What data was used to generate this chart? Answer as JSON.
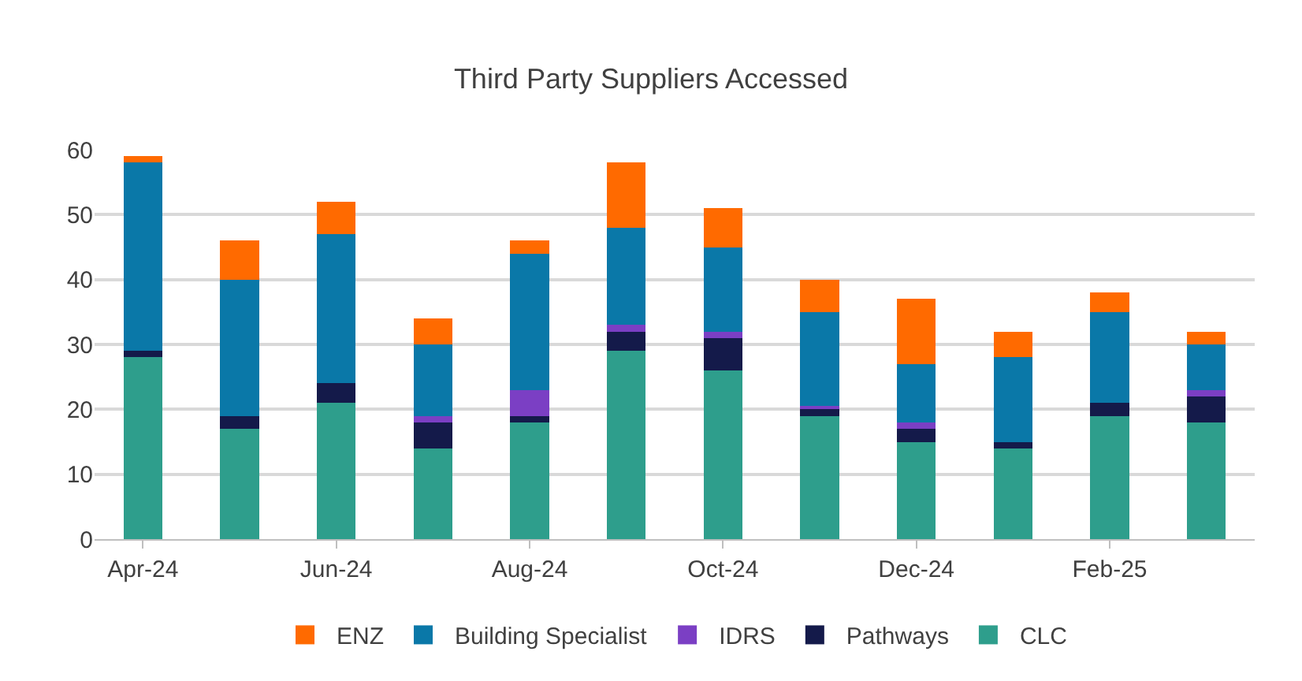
{
  "chart_data": {
    "type": "bar",
    "stacked": true,
    "title": "Third Party Suppliers Accessed",
    "categories": [
      "Apr-24",
      null,
      "Jun-24",
      null,
      "Aug-24",
      null,
      "Oct-24",
      null,
      "Dec-24",
      null,
      "Feb-25",
      null
    ],
    "series": [
      {
        "name": "CLC",
        "color": "#2e9e8c",
        "values": [
          28,
          17,
          21,
          14,
          18,
          29,
          26,
          19,
          15,
          14,
          19,
          18
        ]
      },
      {
        "name": "Pathways",
        "color": "#141a4a",
        "values": [
          1,
          2,
          3,
          4,
          1,
          3,
          5,
          1,
          2,
          1,
          2,
          4
        ]
      },
      {
        "name": "IDRS",
        "color": "#7b3fc4",
        "values": [
          0,
          0,
          0,
          1,
          4,
          1,
          1,
          0.5,
          1,
          0,
          0,
          1
        ]
      },
      {
        "name": "Building Specialist",
        "color": "#0a78a8",
        "values": [
          29,
          21,
          23,
          11,
          21,
          15,
          13,
          14.5,
          9,
          13,
          14,
          7
        ]
      },
      {
        "name": "ENZ",
        "color": "#ff6a00",
        "values": [
          1,
          6,
          5,
          4,
          2,
          10,
          6,
          5,
          10,
          4,
          3,
          2
        ]
      }
    ],
    "ylim": [
      0,
      60
    ],
    "yticks": [
      0,
      10,
      20,
      30,
      40,
      50,
      60
    ],
    "grid": "y",
    "legend": "bottom"
  }
}
